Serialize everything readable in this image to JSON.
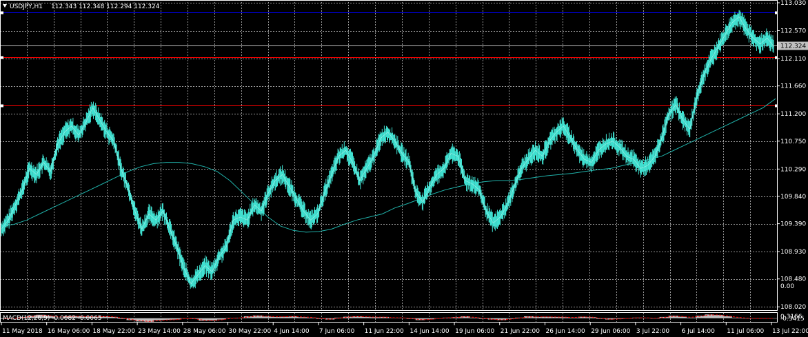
{
  "header": {
    "symbol_label": "USDJPY,H1",
    "ohlc": "112.343 112.348 112.294 112.324",
    "indicator_label": "MACD(12,26,9) -0.0082 -0.0065"
  },
  "colors": {
    "background": "#000000",
    "grid": "#9a9a9a",
    "price": "#40e0d0",
    "ma": "#20b2aa",
    "hist": "#c0c0c0",
    "signal": "#ff0000",
    "blue_line": "#0000ff",
    "red_line": "#ff0000",
    "current_price_line": "#c0c0c0"
  },
  "chart_data": [
    {
      "type": "line",
      "title": "USDJPY,H1",
      "ylim": [
        108.0,
        113.03
      ],
      "price_ticks": [
        "113.030",
        "112.570",
        "112.110",
        "111.660",
        "111.200",
        "110.750",
        "110.290",
        "109.840",
        "109.390",
        "108.930",
        "108.480",
        "108.020"
      ],
      "current_price": "112.324",
      "x_labels": [
        "11 May 2018",
        "16 May 06:00",
        "18 May 22:00",
        "23 May 14:00",
        "28 May 06:00",
        "30 May 22:00",
        "4 Jun 14:00",
        "7 Jun 06:00",
        "11 Jun 22:00",
        "14 Jun 14:00",
        "19 Jun 06:00",
        "21 Jun 22:00",
        "26 Jun 14:00",
        "29 Jun 06:00",
        "3 Jul 22:00",
        "6 Jul 14:00",
        "11 Jul 06:00",
        "13 Jul 22:00"
      ],
      "horizontal_levels": [
        {
          "value": 112.87,
          "color": "blue"
        },
        {
          "value": 112.13,
          "color": "red"
        },
        {
          "value": 111.34,
          "color": "red"
        }
      ],
      "series": [
        {
          "values": [
            109.3,
            109.45,
            109.7,
            109.95,
            110.3,
            110.2,
            110.4,
            110.25,
            110.7,
            110.9,
            111.0,
            110.85,
            111.05,
            111.3,
            111.1,
            110.9,
            110.75,
            110.3,
            110.0,
            109.6,
            109.3,
            109.55,
            109.45,
            109.6,
            109.3,
            109.0,
            108.65,
            108.4,
            108.55,
            108.7,
            108.6,
            108.85,
            109.0,
            109.45,
            109.5,
            109.45,
            109.7,
            109.6,
            109.9,
            110.1,
            110.2,
            110.0,
            109.8,
            109.6,
            109.45,
            109.55,
            109.9,
            110.2,
            110.5,
            110.6,
            110.4,
            110.1,
            110.3,
            110.5,
            110.8,
            110.9,
            110.75,
            110.55,
            110.4,
            109.9,
            109.75,
            110.0,
            110.2,
            110.3,
            110.55,
            110.5,
            110.1,
            110.05,
            109.95,
            109.6,
            109.4,
            109.5,
            109.7,
            110.0,
            110.3,
            110.45,
            110.6,
            110.5,
            110.75,
            110.9,
            111.0,
            110.8,
            110.6,
            110.45,
            110.4,
            110.6,
            110.7,
            110.75,
            110.65,
            110.5,
            110.45,
            110.3,
            110.35,
            110.5,
            110.8,
            111.2,
            111.35,
            111.1,
            110.95,
            111.5,
            111.85,
            112.1,
            112.3,
            112.5,
            112.7,
            112.8,
            112.6,
            112.45,
            112.35,
            112.45,
            112.3
          ]
        },
        {
          "values": [
            109.35,
            109.38,
            109.45,
            109.55,
            109.65,
            109.75,
            109.85,
            109.95,
            110.05,
            110.15,
            110.25,
            110.33,
            110.38,
            110.4,
            110.4,
            110.38,
            110.33,
            110.25,
            110.1,
            109.9,
            109.7,
            109.5,
            109.35,
            109.28,
            109.25,
            109.26,
            109.3,
            109.38,
            109.45,
            109.5,
            109.55,
            109.65,
            109.72,
            109.8,
            109.88,
            109.95,
            110.0,
            110.05,
            110.08,
            110.1,
            110.1,
            110.12,
            110.15,
            110.18,
            110.2,
            110.22,
            110.25,
            110.28,
            110.3,
            110.35,
            110.4,
            110.45,
            110.5,
            110.6,
            110.7,
            110.8,
            110.9,
            111.0,
            111.1,
            111.2,
            111.3,
            111.45
          ]
        }
      ]
    },
    {
      "type": "bar",
      "title": "MACD(12,26,9)",
      "ylim": [
        -0.3415,
        0.3166
      ],
      "value_ticks": [
        "0.3166",
        "0.00",
        "-0.3415"
      ],
      "series": [
        {
          "name": "MACD",
          "values": [
            -0.05,
            0.0,
            0.1,
            0.2,
            0.27,
            0.18,
            0.05,
            0.15,
            0.18,
            0.12,
            0.1,
            0.15,
            0.1,
            -0.05,
            -0.15,
            -0.25,
            -0.28,
            -0.15,
            -0.12,
            -0.1,
            0.0,
            -0.05,
            -0.2,
            -0.18,
            -0.1,
            0.02,
            0.04,
            0.15,
            0.22,
            0.14,
            0.1,
            0.12,
            0.15,
            0.08,
            0.05,
            -0.05,
            -0.1,
            0.05,
            0.12,
            0.15,
            0.1,
            0.08,
            0.1,
            0.03,
            0.02,
            -0.05,
            -0.15,
            -0.08,
            0.0,
            0.05,
            0.08,
            0.15,
            0.05,
            -0.05,
            -0.1,
            -0.15,
            -0.05,
            0.05,
            0.15,
            0.1,
            0.12,
            0.1,
            0.08,
            0.05,
            0.12,
            0.08,
            -0.05,
            -0.1,
            -0.05,
            0.0,
            0.05,
            0.02,
            -0.02,
            0.1,
            0.2,
            0.12,
            0.05,
            0.2,
            0.3,
            0.25,
            0.15,
            0.05,
            -0.02,
            -0.03,
            -0.02,
            -0.01
          ]
        },
        {
          "name": "Signal",
          "values": [
            -0.03,
            -0.01,
            0.05,
            0.14,
            0.22,
            0.2,
            0.1,
            0.12,
            0.16,
            0.14,
            0.11,
            0.13,
            0.12,
            0.02,
            -0.1,
            -0.2,
            -0.25,
            -0.2,
            -0.14,
            -0.11,
            -0.03,
            -0.04,
            -0.15,
            -0.18,
            -0.13,
            -0.02,
            0.02,
            0.1,
            0.18,
            0.16,
            0.12,
            0.12,
            0.14,
            0.1,
            0.07,
            -0.02,
            -0.08,
            0.0,
            0.09,
            0.13,
            0.12,
            0.09,
            0.09,
            0.05,
            0.03,
            -0.02,
            -0.11,
            -0.1,
            -0.03,
            0.03,
            0.06,
            0.12,
            0.08,
            -0.01,
            -0.08,
            -0.13,
            -0.08,
            0.01,
            0.1,
            0.11,
            0.11,
            0.1,
            0.09,
            0.06,
            0.1,
            0.09,
            -0.01,
            -0.08,
            -0.06,
            -0.02,
            0.03,
            0.03,
            0.0,
            0.06,
            0.16,
            0.14,
            0.08,
            0.15,
            0.26,
            0.26,
            0.19,
            0.09,
            0.02,
            -0.02,
            -0.02,
            -0.01
          ]
        }
      ]
    }
  ]
}
